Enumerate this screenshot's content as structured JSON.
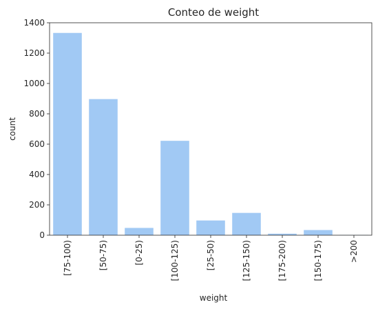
{
  "chart_data": {
    "type": "bar",
    "title": "Conteo de weight",
    "xlabel": "weight",
    "ylabel": "count",
    "categories": [
      "[75-100)",
      "[50-75)",
      "[0-25)",
      "[100-125)",
      "[25-50)",
      "[125-150)",
      "[175-200)",
      "[150-175)",
      ">200"
    ],
    "values": [
      1333,
      897,
      48,
      622,
      97,
      147,
      10,
      34,
      2
    ],
    "ylim": [
      0,
      1400
    ],
    "yticks": [
      0,
      200,
      400,
      600,
      800,
      1000,
      1200,
      1400
    ],
    "bar_color": "#a1c9f4",
    "grid": false,
    "legend": "none"
  }
}
